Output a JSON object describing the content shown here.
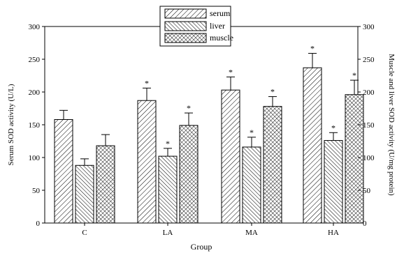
{
  "chart_data": {
    "type": "bar",
    "title": "",
    "xlabel": "Group",
    "ylabel": "Serum SOD activity (U/L)",
    "y2label": "Muscle and liver SOD activity  (U/mg protein)",
    "categories": [
      "C",
      "LA",
      "MA",
      "HA"
    ],
    "ylim": [
      0,
      300
    ],
    "yticks": [
      0,
      50,
      100,
      150,
      200,
      250,
      300
    ],
    "y2lim": [
      0,
      300
    ],
    "y2ticks": [
      0,
      50,
      100,
      150,
      200,
      250,
      300
    ],
    "series": [
      {
        "name": "serum",
        "axis": "left",
        "pattern": "diag-right",
        "values": [
          158,
          187,
          203,
          237
        ],
        "errors": [
          14,
          19,
          20,
          22
        ],
        "significance": [
          "",
          "*",
          "*",
          "*"
        ]
      },
      {
        "name": "liver",
        "axis": "right",
        "pattern": "diag-left",
        "values": [
          88,
          102,
          116,
          126
        ],
        "errors": [
          10,
          12,
          15,
          12
        ],
        "significance": [
          "",
          "*",
          "*",
          "*"
        ]
      },
      {
        "name": "muscle",
        "axis": "right",
        "pattern": "crosshatch",
        "values": [
          118,
          149,
          178,
          196
        ],
        "errors": [
          17,
          19,
          15,
          22
        ],
        "significance": [
          "",
          "*",
          "*",
          "*"
        ]
      }
    ],
    "legend_position": "top-center",
    "grid": false
  }
}
